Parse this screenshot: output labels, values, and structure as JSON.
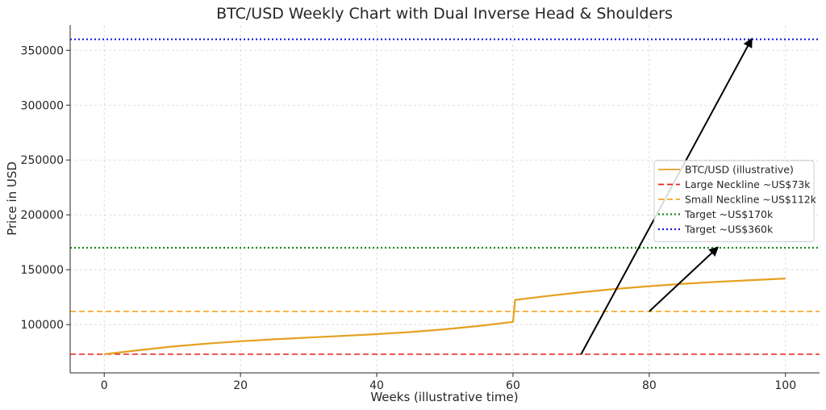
{
  "chart_data": {
    "type": "line",
    "title": "BTC/USD Weekly Chart with Dual Inverse Head & Shoulders",
    "xlabel": "Weeks (illustrative time)",
    "ylabel": "Price in USD",
    "xlim": [
      -5,
      105
    ],
    "ylim": [
      56000,
      373000
    ],
    "xticks": [
      0,
      20,
      40,
      60,
      80,
      100
    ],
    "yticks": [
      100000,
      150000,
      200000,
      250000,
      300000,
      350000
    ],
    "grid": true,
    "legend": "center-right",
    "series": [
      {
        "name": "BTC/USD (illustrative)",
        "color": "#e5a020",
        "style": "solid",
        "x": [
          0,
          5,
          10,
          15,
          20,
          25,
          30,
          35,
          40,
          45,
          50,
          55,
          60,
          60.3,
          65,
          70,
          75,
          80,
          85,
          90,
          95,
          100
        ],
        "y": [
          73000,
          76600,
          80000,
          82600,
          84800,
          86600,
          88200,
          89700,
          91300,
          93200,
          95700,
          98700,
          102500,
          122500,
          126000,
          129500,
          132500,
          135000,
          137200,
          139000,
          140500,
          142000
        ]
      }
    ],
    "reference_lines": [
      {
        "name": "Large Neckline ~US$73k",
        "y": 73000,
        "color": "#e8201c",
        "style": "dashed"
      },
      {
        "name": "Small Neckline ~US$112k",
        "y": 112000,
        "color": "#f5a623",
        "style": "dashed"
      },
      {
        "name": "Target ~US$170k",
        "y": 170000,
        "color": "#1a8c1a",
        "style": "dotted"
      },
      {
        "name": "Target ~US$360k",
        "y": 360000,
        "color": "#1c1ce0",
        "style": "dotted"
      }
    ],
    "arrows": [
      {
        "from": [
          70,
          73000
        ],
        "to": [
          95,
          360000
        ],
        "color": "#000000"
      },
      {
        "from": [
          80,
          112000
        ],
        "to": [
          90,
          170000
        ],
        "color": "#000000"
      }
    ]
  }
}
